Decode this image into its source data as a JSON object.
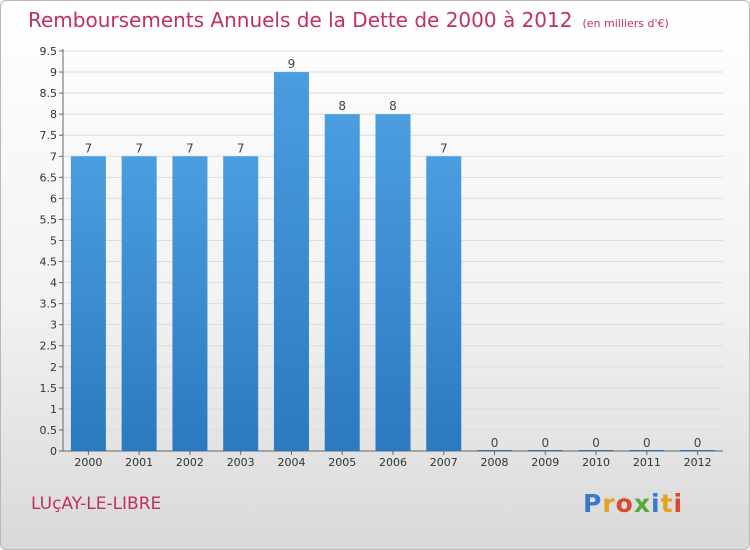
{
  "header": {
    "title": "Remboursements Annuels de la Dette de 2000 à 2012",
    "subtitle": "(en milliers d'€)"
  },
  "footer": {
    "town": "LUçAY-LE-LIBRE",
    "logo_letters": [
      {
        "ch": "P",
        "color": "#3a78c8"
      },
      {
        "ch": "r",
        "color": "#e8a020"
      },
      {
        "ch": "o",
        "color": "#d84a2a"
      },
      {
        "ch": "x",
        "color": "#5aa83a"
      },
      {
        "ch": "i",
        "color": "#3a78c8"
      },
      {
        "ch": "t",
        "color": "#e8a020"
      },
      {
        "ch": "i",
        "color": "#d84a2a"
      }
    ]
  },
  "chart_data": {
    "type": "bar",
    "categories": [
      "2000",
      "2001",
      "2002",
      "2003",
      "2004",
      "2005",
      "2006",
      "2007",
      "2008",
      "2009",
      "2010",
      "2011",
      "2012"
    ],
    "values": [
      7,
      7,
      7,
      7,
      9,
      8,
      8,
      7,
      0,
      0,
      0,
      0,
      0
    ],
    "data_labels": [
      "7",
      "7",
      "7",
      "7",
      "9",
      "8",
      "8",
      "7",
      "0",
      "0",
      "0",
      "0",
      "0"
    ],
    "ylim": [
      0,
      9.5
    ],
    "yticks": [
      0,
      0.5,
      1,
      1.5,
      2,
      2.5,
      3,
      3.5,
      4,
      4.5,
      5,
      5.5,
      6,
      6.5,
      7,
      7.5,
      8,
      8.5,
      9,
      9.5
    ],
    "ytick_labels": [
      "0",
      "0.5",
      "1",
      "1.5",
      "2",
      "2.5",
      "3",
      "3.5",
      "4",
      "4.5",
      "5",
      "5.5",
      "6",
      "6.5",
      "7",
      "7.5",
      "8",
      "8.5",
      "9",
      "9.5"
    ],
    "grid": true,
    "bar_color": "#4a9ee0",
    "bar_color_dark": "#2b79bf"
  }
}
